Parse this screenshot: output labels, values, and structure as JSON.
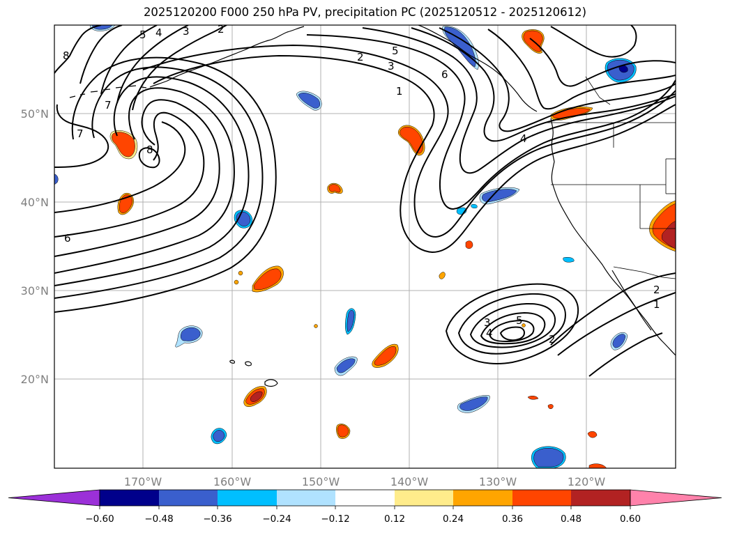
{
  "title": "2025120200 F000 250 hPa PV, precipitation PC (2025120512 - 2025120612)",
  "map": {
    "lat_labels": [
      "50°N",
      "40°N",
      "30°N",
      "20°N"
    ],
    "lon_labels": [
      "170°W",
      "160°W",
      "150°W",
      "140°W",
      "130°W",
      "120°W"
    ],
    "contour_labels": [
      {
        "text": "5"
      },
      {
        "text": "4"
      },
      {
        "text": "3"
      },
      {
        "text": "2"
      },
      {
        "text": "8"
      },
      {
        "text": "7"
      },
      {
        "text": "7"
      },
      {
        "text": "8"
      },
      {
        "text": "6"
      },
      {
        "text": "2"
      },
      {
        "text": "5"
      },
      {
        "text": "3"
      },
      {
        "text": "6"
      },
      {
        "text": "1"
      },
      {
        "text": "4"
      },
      {
        "text": "3"
      },
      {
        "text": "5"
      },
      {
        "text": "4"
      },
      {
        "text": "2"
      },
      {
        "text": "2"
      },
      {
        "text": "1"
      }
    ]
  },
  "colorbar": {
    "ticks": [
      "−0.60",
      "−0.48",
      "−0.36",
      "−0.24",
      "−0.12",
      "0.12",
      "0.24",
      "0.36",
      "0.48",
      "0.60"
    ],
    "colors": [
      "#9b30d8",
      "#00008b",
      "#3a5fcd",
      "#00bfff",
      "#b0e2ff",
      "#ffffff",
      "#ffec8b",
      "#ffa500",
      "#ff4500",
      "#b22222",
      "#ff82ab"
    ]
  },
  "colors": {
    "frame": "#000000",
    "grid": "#b0b0b0",
    "contour": "#000000",
    "pos_strong": "#b22222",
    "pos_mid": "#ff4500",
    "pos_weak": "#ffa500",
    "pos_faint": "#ffec8b",
    "neg_strong": "#3a5fcd",
    "neg_weak": "#00bfff",
    "neg_faint": "#b0e2ff"
  }
}
